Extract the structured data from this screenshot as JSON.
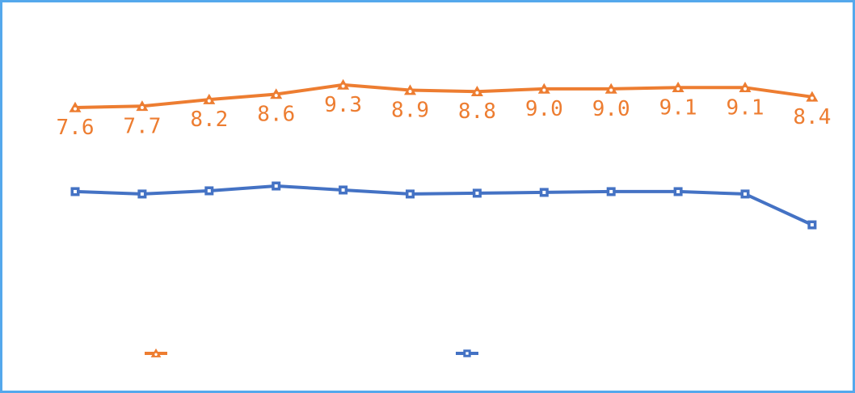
{
  "colors": {
    "frame_border": "#54A8EC",
    "background": "#FFFFFF",
    "series_orange": "#ED7D31",
    "series_blue": "#4472C4",
    "marker_center": "#FFFFFF"
  },
  "chart_data": {
    "type": "line",
    "title": "",
    "xlabel": "",
    "ylabel": "",
    "axes_visible": false,
    "gridlines": false,
    "x_count": 12,
    "categories": [
      "",
      "",
      "",
      "",
      "",
      "",
      "",
      "",
      "",
      "",
      "",
      ""
    ],
    "series": [
      {
        "id": "orange-triangle-series",
        "name": "",
        "color": "#ED7D31",
        "marker": "triangle",
        "line_width": 4,
        "values": [
          7.6,
          7.7,
          8.2,
          8.6,
          9.3,
          8.9,
          8.8,
          9.0,
          9.0,
          9.1,
          9.1,
          8.4
        ],
        "data_labels": [
          "7.6",
          "7.7",
          "8.2",
          "8.6",
          "9.3",
          "8.9",
          "8.8",
          "9.0",
          "9.0",
          "9.1",
          "9.1",
          "8.4"
        ],
        "data_labels_visible": true
      },
      {
        "id": "blue-square-series",
        "name": "",
        "color": "#4472C4",
        "marker": "square",
        "line_width": 4,
        "values": [
          1.3,
          1.12,
          1.36,
          1.72,
          1.42,
          1.12,
          1.18,
          1.24,
          1.3,
          1.3,
          1.12,
          -1.19
        ],
        "values_estimated": true,
        "data_labels": [],
        "data_labels_visible": false
      }
    ],
    "legend": {
      "position": "bottom",
      "entries": [
        {
          "label": "",
          "series": "orange-triangle-series"
        },
        {
          "label": "",
          "series": "blue-square-series"
        }
      ]
    }
  }
}
